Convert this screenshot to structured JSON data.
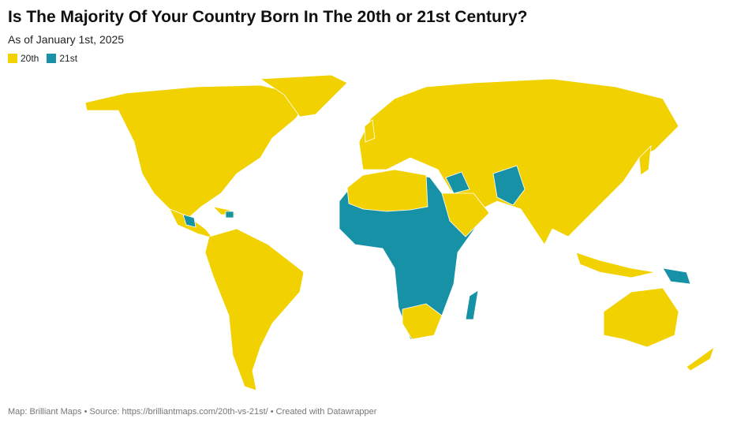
{
  "header": {
    "title": "Is The Majority Of Your Country Born In The 20th or 21st Century?",
    "subtitle": "As of January 1st, 2025"
  },
  "legend": [
    {
      "label": "20th",
      "color": "#f2d100"
    },
    {
      "label": "21st",
      "color": "#1791a5"
    }
  ],
  "footer": "Map: Brilliant Maps • Source: https://brilliantmaps.com/20th-vs-21st/ • Created with Datawrapper"
}
